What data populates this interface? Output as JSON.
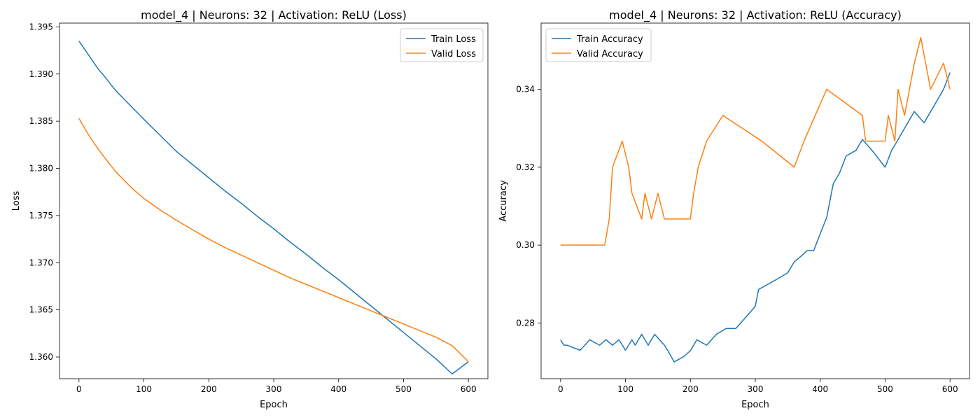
{
  "chart_data": [
    {
      "type": "line",
      "title": "model_4 | Neurons: 32 | Activation: ReLU (Loss)",
      "xlabel": "Epoch",
      "ylabel": "Loss",
      "xlim": [
        -30,
        630
      ],
      "ylim": [
        1.3577,
        1.3954
      ],
      "xticks": [
        0,
        100,
        200,
        300,
        400,
        500,
        600
      ],
      "yticks": [
        1.36,
        1.365,
        1.37,
        1.375,
        1.38,
        1.385,
        1.39,
        1.395
      ],
      "ytick_decimals": 3,
      "grid": false,
      "legend_position": "top-right",
      "series": [
        {
          "name": "Train Loss",
          "color": "#1f77b4",
          "x": [
            0,
            10,
            20,
            30,
            40,
            50,
            60,
            70,
            80,
            90,
            100,
            125,
            150,
            175,
            200,
            225,
            250,
            275,
            300,
            325,
            350,
            375,
            400,
            425,
            450,
            475,
            500,
            525,
            550,
            575,
            600
          ],
          "values": [
            1.3935,
            1.3925,
            1.3915,
            1.3905,
            1.3897,
            1.3888,
            1.388,
            1.3873,
            1.3866,
            1.3859,
            1.3852,
            1.3835,
            1.3818,
            1.3804,
            1.379,
            1.3776,
            1.3763,
            1.3749,
            1.3736,
            1.3722,
            1.3709,
            1.3695,
            1.3682,
            1.3668,
            1.3654,
            1.364,
            1.3626,
            1.3612,
            1.3598,
            1.3582,
            1.3595
          ]
        },
        {
          "name": "Valid Loss",
          "color": "#ff7f0e",
          "x": [
            0,
            10,
            20,
            30,
            40,
            50,
            60,
            70,
            80,
            90,
            100,
            125,
            150,
            175,
            200,
            225,
            250,
            275,
            300,
            325,
            350,
            375,
            400,
            425,
            450,
            475,
            500,
            525,
            550,
            575,
            600
          ],
          "values": [
            1.3853,
            1.3841,
            1.383,
            1.382,
            1.3811,
            1.3802,
            1.3794,
            1.3787,
            1.378,
            1.3774,
            1.3768,
            1.3756,
            1.3745,
            1.3735,
            1.3725,
            1.3716,
            1.3708,
            1.37,
            1.3692,
            1.3684,
            1.3677,
            1.367,
            1.3663,
            1.3656,
            1.3649,
            1.3642,
            1.3635,
            1.3628,
            1.3621,
            1.3612,
            1.3595
          ]
        }
      ]
    },
    {
      "type": "line",
      "title": "model_4 | Neurons: 32 | Activation: ReLU (Accuracy)",
      "xlabel": "Epoch",
      "ylabel": "Accuracy",
      "xlim": [
        -30,
        630
      ],
      "ylim": [
        0.2657,
        0.357
      ],
      "xticks": [
        0,
        100,
        200,
        300,
        400,
        500,
        600
      ],
      "yticks": [
        0.28,
        0.3,
        0.32,
        0.34
      ],
      "ytick_decimals": 2,
      "grid": false,
      "legend_position": "top-left",
      "series": [
        {
          "name": "Train Accuracy",
          "color": "#1f77b4",
          "x": [
            0,
            5,
            10,
            30,
            45,
            60,
            70,
            80,
            90,
            100,
            110,
            115,
            125,
            135,
            145,
            160,
            165,
            175,
            190,
            200,
            210,
            225,
            240,
            255,
            270,
            285,
            300,
            305,
            320,
            335,
            350,
            360,
            370,
            380,
            390,
            400,
            410,
            420,
            430,
            440,
            455,
            465,
            480,
            500,
            510,
            520,
            530,
            545,
            560,
            580,
            590,
            600
          ],
          "values": [
            0.2757,
            0.2743,
            0.2743,
            0.273,
            0.2757,
            0.2743,
            0.2757,
            0.2743,
            0.2757,
            0.273,
            0.2757,
            0.2743,
            0.2771,
            0.2743,
            0.2771,
            0.2743,
            0.273,
            0.27,
            0.2714,
            0.2729,
            0.2757,
            0.2743,
            0.2771,
            0.2786,
            0.2786,
            0.2814,
            0.2843,
            0.2886,
            0.29,
            0.2914,
            0.2929,
            0.2957,
            0.2971,
            0.2986,
            0.2986,
            0.3029,
            0.3071,
            0.3157,
            0.3186,
            0.3229,
            0.3243,
            0.3271,
            0.3243,
            0.32,
            0.3243,
            0.3271,
            0.33,
            0.3343,
            0.3314,
            0.3371,
            0.34,
            0.3443
          ]
        },
        {
          "name": "Valid Accuracy",
          "color": "#ff7f0e",
          "x": [
            0,
            68,
            75,
            80,
            95,
            105,
            110,
            125,
            130,
            140,
            150,
            160,
            200,
            205,
            212,
            225,
            250,
            310,
            360,
            375,
            410,
            465,
            470,
            500,
            505,
            515,
            520,
            530,
            545,
            555,
            570,
            590,
            600
          ],
          "values": [
            0.3,
            0.3,
            0.3067,
            0.32,
            0.3267,
            0.32,
            0.3133,
            0.3067,
            0.3133,
            0.3067,
            0.3133,
            0.3067,
            0.3067,
            0.3133,
            0.32,
            0.3267,
            0.3333,
            0.3267,
            0.32,
            0.3267,
            0.34,
            0.3333,
            0.3267,
            0.3267,
            0.3333,
            0.3267,
            0.34,
            0.3333,
            0.3467,
            0.3533,
            0.34,
            0.3467,
            0.34
          ]
        }
      ]
    }
  ]
}
